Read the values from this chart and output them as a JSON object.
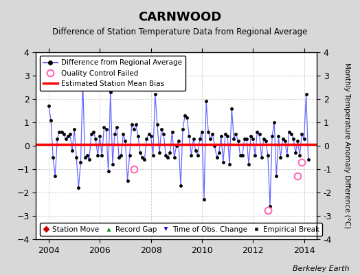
{
  "title": "CARNWOOD",
  "subtitle": "Difference of Station Temperature Data from Regional Average",
  "ylabel_right": "Monthly Temperature Anomaly Difference (°C)",
  "footer": "Berkeley Earth",
  "xlim": [
    2003.5,
    2014.5
  ],
  "ylim": [
    -4,
    4
  ],
  "yticks": [
    -4,
    -3,
    -2,
    -1,
    0,
    1,
    2,
    3,
    4
  ],
  "xticks": [
    2004,
    2006,
    2008,
    2010,
    2012,
    2014
  ],
  "mean_bias": 0.05,
  "figure_bg": "#d8d8d8",
  "plot_bg": "#ffffff",
  "line_color": "#6666ff",
  "marker_color": "#000000",
  "bias_color": "#ff0000",
  "qc_color": "#ff69b4",
  "dates": [
    2004.0,
    2004.083,
    2004.167,
    2004.25,
    2004.333,
    2004.417,
    2004.5,
    2004.583,
    2004.667,
    2004.75,
    2004.833,
    2004.917,
    2005.0,
    2005.083,
    2005.167,
    2005.25,
    2005.333,
    2005.417,
    2005.5,
    2005.583,
    2005.667,
    2005.75,
    2005.833,
    2005.917,
    2006.0,
    2006.083,
    2006.167,
    2006.25,
    2006.333,
    2006.417,
    2006.5,
    2006.583,
    2006.667,
    2006.75,
    2006.833,
    2006.917,
    2007.0,
    2007.083,
    2007.167,
    2007.25,
    2007.333,
    2007.417,
    2007.5,
    2007.583,
    2007.667,
    2007.75,
    2007.833,
    2007.917,
    2008.0,
    2008.083,
    2008.167,
    2008.25,
    2008.333,
    2008.417,
    2008.5,
    2008.583,
    2008.667,
    2008.75,
    2008.833,
    2008.917,
    2009.0,
    2009.083,
    2009.167,
    2009.25,
    2009.333,
    2009.417,
    2009.5,
    2009.583,
    2009.667,
    2009.75,
    2009.833,
    2009.917,
    2010.0,
    2010.083,
    2010.167,
    2010.25,
    2010.333,
    2010.417,
    2010.5,
    2010.583,
    2010.667,
    2010.75,
    2010.833,
    2010.917,
    2011.0,
    2011.083,
    2011.167,
    2011.25,
    2011.333,
    2011.417,
    2011.5,
    2011.583,
    2011.667,
    2011.75,
    2011.833,
    2011.917,
    2012.0,
    2012.083,
    2012.167,
    2012.25,
    2012.333,
    2012.417,
    2012.5,
    2012.583,
    2012.667,
    2012.75,
    2012.833,
    2012.917,
    2013.0,
    2013.083,
    2013.167,
    2013.25,
    2013.333,
    2013.417,
    2013.5,
    2013.583,
    2013.667,
    2013.75,
    2013.833,
    2013.917,
    2014.0,
    2014.083,
    2014.167
  ],
  "values": [
    1.7,
    1.1,
    -0.5,
    -1.3,
    0.3,
    0.6,
    0.6,
    0.5,
    0.3,
    0.4,
    0.5,
    -0.2,
    0.7,
    -0.5,
    -1.8,
    -0.7,
    2.7,
    -0.5,
    -0.4,
    -0.6,
    0.5,
    0.6,
    0.3,
    -0.4,
    0.4,
    -0.4,
    0.8,
    0.7,
    -1.1,
    2.3,
    -0.8,
    0.5,
    0.8,
    -0.5,
    -0.4,
    0.5,
    0.2,
    -1.5,
    -0.4,
    0.9,
    0.7,
    0.9,
    0.4,
    -0.3,
    -0.5,
    -0.6,
    0.3,
    0.5,
    0.4,
    -0.4,
    2.2,
    0.9,
    -0.3,
    0.7,
    0.5,
    -0.4,
    -0.5,
    -0.3,
    0.6,
    -0.5,
    0.0,
    0.2,
    -1.7,
    0.7,
    1.3,
    1.2,
    0.4,
    -0.4,
    0.3,
    -0.2,
    -0.4,
    0.3,
    0.6,
    -2.3,
    1.9,
    0.6,
    0.3,
    0.5,
    0.0,
    -0.5,
    -0.3,
    0.4,
    -0.7,
    0.5,
    0.4,
    -0.8,
    1.6,
    0.3,
    0.5,
    0.2,
    -0.4,
    -0.4,
    0.3,
    0.3,
    -0.8,
    0.4,
    0.3,
    -0.4,
    0.6,
    0.5,
    -0.5,
    0.3,
    0.2,
    -0.4,
    -2.6,
    0.4,
    1.0,
    -1.3,
    0.4,
    -0.5,
    0.3,
    0.2,
    -0.4,
    0.6,
    0.5,
    0.3,
    -0.3,
    0.2,
    -0.4,
    0.5,
    0.3,
    2.2,
    -0.6
  ],
  "qc_failed_dates": [
    2007.333,
    2012.583,
    2013.75,
    2013.917
  ],
  "qc_failed_values": [
    -1.0,
    -2.75,
    -1.3,
    -0.7
  ]
}
